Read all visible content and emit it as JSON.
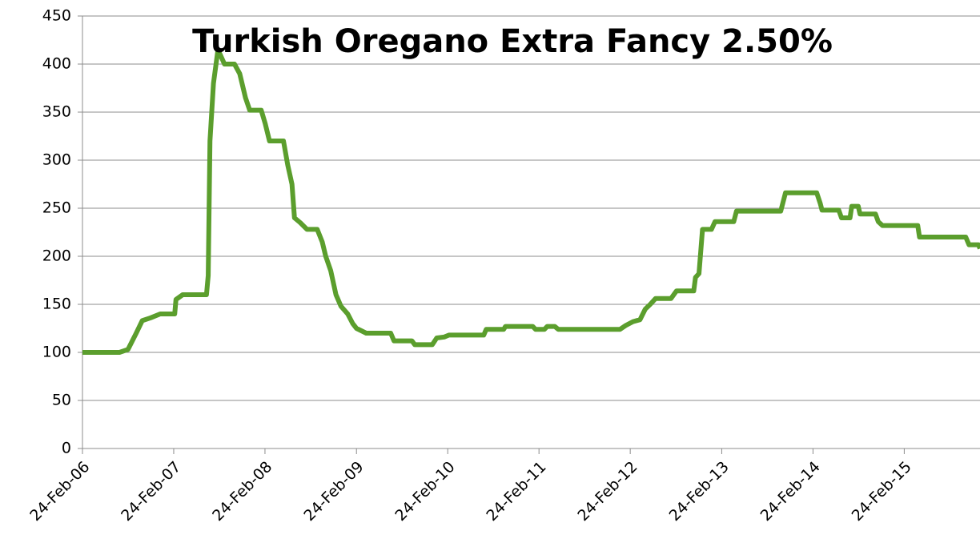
{
  "chart_data": {
    "type": "line",
    "title": "Turkish Oregano Extra Fancy 2.50%",
    "color": "#5b9e2d",
    "grid": true,
    "xlim": [
      "2006-02-24",
      "2015-12-24"
    ],
    "xticks": [
      {
        "value": "2006-02-24",
        "label": "24-Feb-06"
      },
      {
        "value": "2007-02-24",
        "label": "24-Feb-07"
      },
      {
        "value": "2008-02-24",
        "label": "24-Feb-08"
      },
      {
        "value": "2009-02-24",
        "label": "24-Feb-09"
      },
      {
        "value": "2010-02-24",
        "label": "24-Feb-10"
      },
      {
        "value": "2011-02-24",
        "label": "24-Feb-11"
      },
      {
        "value": "2012-02-24",
        "label": "24-Feb-12"
      },
      {
        "value": "2013-02-24",
        "label": "24-Feb-13"
      },
      {
        "value": "2014-02-24",
        "label": "24-Feb-14"
      },
      {
        "value": "2015-02-24",
        "label": "24-Feb-15"
      }
    ],
    "ylim": [
      0,
      450
    ],
    "yticks": [
      0,
      50,
      100,
      150,
      200,
      250,
      300,
      350,
      400,
      450
    ],
    "x": [
      "2006-02-24",
      "2006-07-22",
      "2006-08-25",
      "2006-09-27",
      "2006-10-21",
      "2006-11-24",
      "2007-01-01",
      "2007-02-28",
      "2007-03-05",
      "2007-04-01",
      "2007-07-05",
      "2007-07-12",
      "2007-07-19",
      "2007-08-02",
      "2007-08-20",
      "2007-09-15",
      "2007-10-25",
      "2007-11-15",
      "2007-12-08",
      "2007-12-25",
      "2008-02-09",
      "2008-02-25",
      "2008-03-13",
      "2008-05-08",
      "2008-05-25",
      "2008-06-11",
      "2008-06-21",
      "2008-07-14",
      "2008-08-10",
      "2008-09-20",
      "2008-10-10",
      "2008-10-24",
      "2008-11-13",
      "2008-12-04",
      "2008-12-24",
      "2009-01-20",
      "2009-02-09",
      "2009-02-24",
      "2009-04-04",
      "2009-07-11",
      "2009-07-24",
      "2009-10-04",
      "2009-10-15",
      "2009-12-24",
      "2010-01-11",
      "2010-02-10",
      "2010-03-01",
      "2010-07-18",
      "2010-07-28",
      "2010-10-06",
      "2010-10-13",
      "2011-01-30",
      "2011-02-10",
      "2011-03-18",
      "2011-03-29",
      "2011-04-28",
      "2011-05-12",
      "2012-01-14",
      "2012-02-06",
      "2012-03-06",
      "2012-04-03",
      "2012-04-24",
      "2012-05-14",
      "2012-06-04",
      "2012-08-05",
      "2012-08-27",
      "2012-11-04",
      "2012-11-11",
      "2012-11-25",
      "2012-12-09",
      "2013-01-14",
      "2013-01-28",
      "2013-04-13",
      "2013-04-24",
      "2013-10-18",
      "2013-11-06",
      "2014-03-11",
      "2014-03-25",
      "2014-04-01",
      "2014-06-07",
      "2014-06-18",
      "2014-07-22",
      "2014-07-29",
      "2014-08-24",
      "2014-08-31",
      "2014-11-01",
      "2014-11-12",
      "2014-11-29",
      "2015-04-19",
      "2015-04-26",
      "2015-10-28",
      "2015-11-10",
      "2015-12-18",
      "2015-12-24"
    ],
    "values": [
      100,
      100,
      103,
      120,
      133,
      136,
      140,
      140,
      155,
      160,
      160,
      180,
      320,
      380,
      415,
      400,
      400,
      390,
      365,
      352,
      352,
      338,
      320,
      320,
      295,
      275,
      240,
      235,
      228,
      228,
      215,
      200,
      185,
      160,
      148,
      140,
      130,
      125,
      120,
      120,
      112,
      112,
      108,
      108,
      115,
      116,
      118,
      118,
      124,
      124,
      127,
      127,
      124,
      124,
      127,
      127,
      124,
      124,
      128,
      132,
      134,
      145,
      150,
      156,
      156,
      164,
      164,
      178,
      182,
      228,
      228,
      236,
      236,
      247,
      247,
      266,
      266,
      255,
      248,
      248,
      240,
      240,
      252,
      252,
      244,
      244,
      236,
      232,
      232,
      220,
      220,
      212,
      212,
      208
    ]
  }
}
